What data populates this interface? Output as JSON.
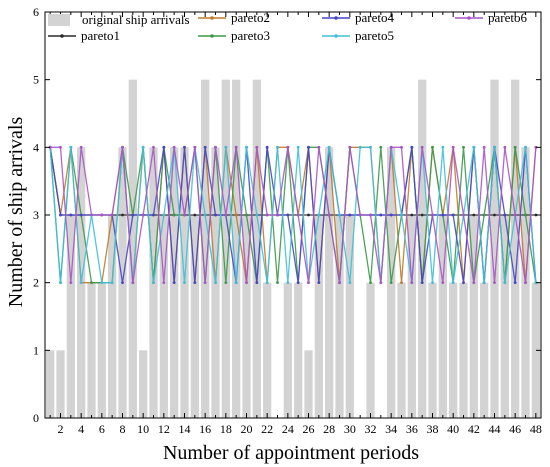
{
  "chart_data": {
    "type": "bar",
    "title": "",
    "xlabel": "Number of appointment periods",
    "ylabel": "Number of ship arrivals",
    "xlim": [
      0.5,
      48.5
    ],
    "ylim": [
      0,
      6
    ],
    "x_ticks": [
      "2",
      "4",
      "6",
      "8",
      "10",
      "12",
      "14",
      "16",
      "18",
      "20",
      "22",
      "24",
      "26",
      "28",
      "30",
      "32",
      "34",
      "36",
      "38",
      "40",
      "42",
      "44",
      "46",
      "48"
    ],
    "y_ticks": [
      "0",
      "1",
      "2",
      "3",
      "4",
      "5",
      "6"
    ],
    "grid": false,
    "legend_position": "top",
    "x": [
      1,
      2,
      3,
      4,
      5,
      6,
      7,
      8,
      9,
      10,
      11,
      12,
      13,
      14,
      15,
      16,
      17,
      18,
      19,
      20,
      21,
      22,
      23,
      24,
      25,
      26,
      27,
      28,
      29,
      30,
      31,
      32,
      33,
      34,
      35,
      36,
      37,
      38,
      39,
      40,
      41,
      42,
      43,
      44,
      45,
      46,
      47,
      48
    ],
    "bars": {
      "name": "original ship arrivals",
      "color": "#d3d3d3",
      "values": [
        1,
        1,
        3,
        4,
        2,
        2,
        3,
        4,
        5,
        1,
        4,
        3,
        4,
        4,
        3,
        5,
        4,
        5,
        5,
        3,
        5,
        2,
        0,
        2,
        2,
        1,
        3,
        4,
        3,
        3,
        0,
        2,
        0,
        4,
        2,
        3,
        5,
        2,
        3,
        2,
        2,
        3,
        2,
        5,
        3,
        5,
        4,
        2
      ]
    },
    "series": [
      {
        "name": "pareto1",
        "color": "#2b2b2b",
        "values": [
          4,
          3,
          3,
          3,
          3,
          3,
          3,
          3,
          3,
          3,
          3,
          3,
          3,
          3,
          3,
          3,
          3,
          3,
          3,
          3,
          3,
          3,
          3,
          3,
          3,
          3,
          3,
          3,
          3,
          3,
          3,
          3,
          3,
          3,
          3,
          3,
          3,
          3,
          3,
          3,
          3,
          3,
          3,
          3,
          3,
          3,
          3,
          3
        ]
      },
      {
        "name": "pareto2",
        "color": "#c27a2c",
        "values": [
          4,
          3,
          4,
          2,
          2,
          2,
          3,
          4,
          2,
          4,
          2,
          4,
          2,
          4,
          2,
          4,
          2,
          4,
          3,
          2,
          4,
          2,
          4,
          4,
          3,
          4,
          2,
          4,
          2,
          4,
          4,
          4,
          2,
          4,
          2,
          4,
          2,
          4,
          3,
          4,
          2,
          4,
          2,
          4,
          2,
          4,
          2,
          4
        ]
      },
      {
        "name": "pareto3",
        "color": "#3c9a4a",
        "values": [
          4,
          2,
          4,
          3,
          2,
          2,
          2,
          4,
          3,
          4,
          2,
          4,
          3,
          3,
          4,
          2,
          4,
          2,
          4,
          3,
          2,
          4,
          2,
          4,
          2,
          4,
          4,
          3,
          2,
          4,
          3,
          2,
          4,
          2,
          3,
          4,
          2,
          4,
          3,
          2,
          4,
          2,
          3,
          4,
          2,
          4,
          3,
          2
        ]
      },
      {
        "name": "pareto4",
        "color": "#4646c8",
        "values": [
          4,
          3,
          3,
          3,
          3,
          3,
          3,
          2,
          3,
          3,
          3,
          4,
          2,
          4,
          2,
          4,
          3,
          3,
          2,
          4,
          2,
          4,
          3,
          3,
          2,
          4,
          2,
          4,
          3,
          3,
          3,
          3,
          3,
          3,
          3,
          4,
          2,
          3,
          3,
          3,
          2,
          4,
          2,
          4,
          3,
          2,
          4,
          2
        ]
      },
      {
        "name": "pareto5",
        "color": "#40c0d8",
        "values": [
          4,
          2,
          4,
          2,
          3,
          2,
          2,
          4,
          2,
          4,
          2,
          3,
          4,
          2,
          4,
          3,
          2,
          4,
          2,
          4,
          3,
          2,
          4,
          2,
          4,
          2,
          3,
          4,
          3,
          2,
          4,
          4,
          2,
          4,
          3,
          2,
          4,
          2,
          4,
          2,
          3,
          4,
          2,
          4,
          2,
          3,
          4,
          2
        ]
      },
      {
        "name": "pareto6",
        "color": "#a855c8",
        "values": [
          4,
          4,
          2,
          4,
          3,
          3,
          3,
          4,
          2,
          3,
          4,
          2,
          4,
          3,
          4,
          2,
          4,
          3,
          4,
          2,
          4,
          3,
          3,
          4,
          3,
          2,
          4,
          3,
          2,
          4,
          3,
          3,
          2,
          4,
          4,
          2,
          4,
          3,
          2,
          4,
          3,
          2,
          4,
          2,
          4,
          3,
          2,
          4
        ]
      }
    ]
  }
}
